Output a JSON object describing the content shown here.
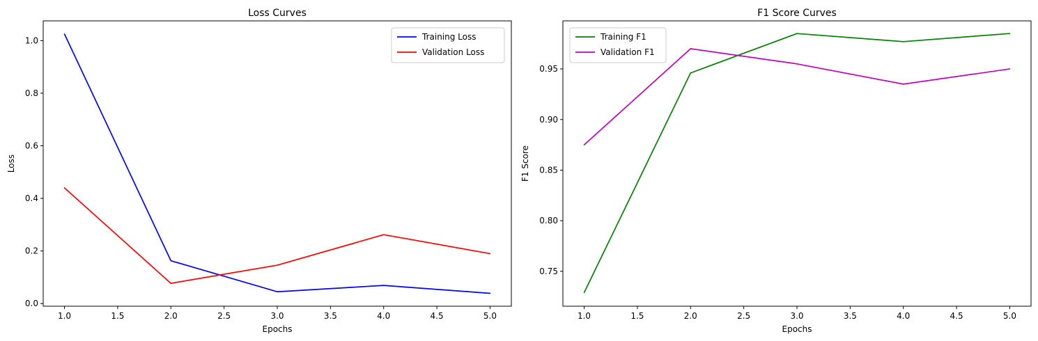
{
  "chart_data": [
    {
      "type": "line",
      "title": "Loss Curves",
      "xlabel": "Epochs",
      "ylabel": "Loss",
      "x": [
        1.0,
        2.0,
        3.0,
        4.0,
        5.0
      ],
      "xlim": [
        0.8,
        5.2
      ],
      "ylim": [
        -0.01,
        1.075
      ],
      "xticks": [
        "1.0",
        "1.5",
        "2.0",
        "2.5",
        "3.0",
        "3.5",
        "4.0",
        "4.5",
        "5.0"
      ],
      "yticks": [
        "0.0",
        "0.2",
        "0.4",
        "0.6",
        "0.8",
        "1.0"
      ],
      "grid": false,
      "legend_position": "top-right",
      "series": [
        {
          "name": "Training Loss",
          "color": "#0000ff",
          "values": [
            1.025,
            0.163,
            0.045,
            0.069,
            0.039
          ]
        },
        {
          "name": "Validation Loss",
          "color": "#ff0000",
          "values": [
            0.44,
            0.077,
            0.146,
            0.262,
            0.19
          ]
        }
      ]
    },
    {
      "type": "line",
      "title": "F1 Score Curves",
      "xlabel": "Epochs",
      "ylabel": "F1 Score",
      "x": [
        1.0,
        2.0,
        3.0,
        4.0,
        5.0
      ],
      "xlim": [
        0.8,
        5.2
      ],
      "ylim": [
        0.7155,
        0.9975
      ],
      "xticks": [
        "1.0",
        "1.5",
        "2.0",
        "2.5",
        "3.0",
        "3.5",
        "4.0",
        "4.5",
        "5.0"
      ],
      "yticks": [
        "0.75",
        "0.80",
        "0.85",
        "0.90",
        "0.95"
      ],
      "grid": false,
      "legend_position": "top-left",
      "series": [
        {
          "name": "Training F1",
          "color": "#008000",
          "values": [
            0.729,
            0.946,
            0.985,
            0.977,
            0.985
          ]
        },
        {
          "name": "Validation F1",
          "color": "#bf00bf",
          "values": [
            0.875,
            0.97,
            0.955,
            0.935,
            0.95
          ]
        }
      ]
    }
  ]
}
